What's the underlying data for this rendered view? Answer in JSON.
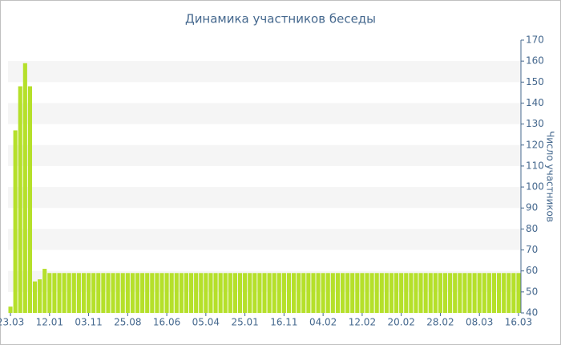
{
  "chart_data": {
    "type": "bar",
    "title": "Динамика участников беседы",
    "y_label": "Число участников",
    "categories": [
      "23.03",
      null,
      null,
      null,
      null,
      null,
      null,
      null,
      "12.01",
      null,
      null,
      null,
      null,
      null,
      null,
      null,
      "03.11",
      null,
      null,
      null,
      null,
      null,
      null,
      null,
      "25.08",
      null,
      null,
      null,
      null,
      null,
      null,
      null,
      "16.06",
      null,
      null,
      null,
      null,
      null,
      null,
      null,
      "05.04",
      null,
      null,
      null,
      null,
      null,
      null,
      null,
      "25.01",
      null,
      null,
      null,
      null,
      null,
      null,
      null,
      "16.11",
      null,
      null,
      null,
      null,
      null,
      null,
      null,
      "04.02",
      null,
      null,
      null,
      null,
      null,
      null,
      null,
      "12.02",
      null,
      null,
      null,
      null,
      null,
      null,
      null,
      "20.02",
      null,
      null,
      null,
      null,
      null,
      null,
      null,
      "28.02",
      null,
      null,
      null,
      null,
      null,
      null,
      null,
      "08.03",
      null,
      null,
      null,
      null,
      null,
      null,
      null,
      "16.03"
    ],
    "values": [
      43,
      127,
      148,
      159,
      148,
      55,
      56,
      61,
      59,
      59,
      59,
      59,
      59,
      59,
      59,
      59,
      59,
      59,
      59,
      59,
      59,
      59,
      59,
      59,
      59,
      59,
      59,
      59,
      59,
      59,
      59,
      59,
      59,
      59,
      59,
      59,
      59,
      59,
      59,
      59,
      59,
      59,
      59,
      59,
      59,
      59,
      59,
      59,
      59,
      59,
      59,
      59,
      59,
      59,
      59,
      59,
      59,
      59,
      59,
      59,
      59,
      59,
      59,
      59,
      59,
      59,
      59,
      59,
      59,
      59,
      59,
      59,
      59,
      59,
      59,
      59,
      59,
      59,
      59,
      59,
      59,
      59,
      59,
      59,
      59,
      59,
      59,
      59,
      59,
      59,
      59,
      59,
      59,
      59,
      59,
      59,
      59,
      59,
      59,
      59,
      59,
      59,
      59,
      59,
      59
    ],
    "color": "#b5e02a",
    "ylim": [
      40,
      170
    ],
    "yticks": [
      40,
      50,
      60,
      70,
      80,
      90,
      100,
      110,
      120,
      130,
      140,
      150,
      160,
      170
    ],
    "grid": true
  }
}
